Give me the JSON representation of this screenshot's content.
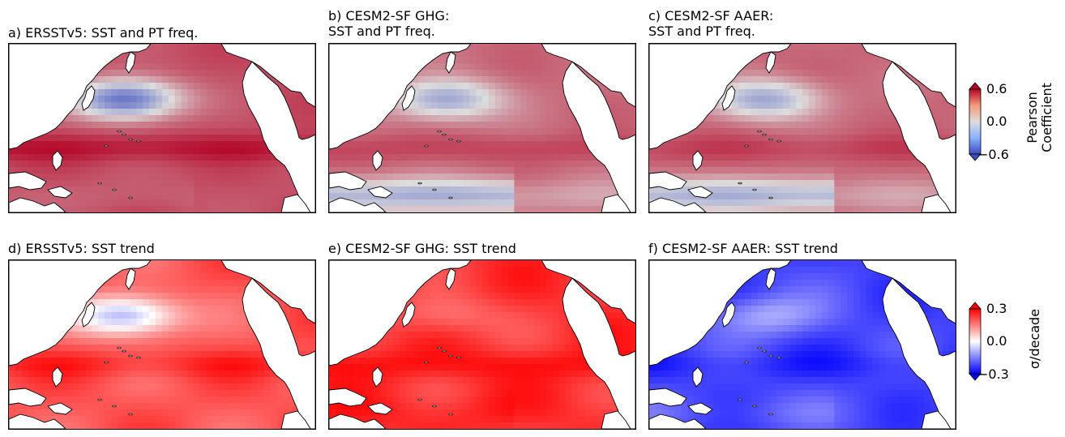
{
  "chart_data": [
    {
      "type": "heatmap",
      "panel": "a",
      "title": "a) ERSSTv5: SST and PT freq.",
      "field": "correlation",
      "colormap": "coolwarm",
      "vmin": -0.6,
      "vmax": 0.6,
      "pattern": {
        "base": 0.4,
        "ne_pacific_anomaly": -0.85,
        "tropical_band": 0.15,
        "southern_band": -0.05
      }
    },
    {
      "type": "heatmap",
      "panel": "b",
      "title": "b) CESM2-SF GHG:\nSST and PT freq.",
      "field": "correlation",
      "colormap": "coolwarm",
      "vmin": -0.6,
      "vmax": 0.6,
      "pattern": {
        "base": 0.32,
        "ne_pacific_anomaly": -0.55,
        "tropical_band": 0.1,
        "southern_band": -0.5
      }
    },
    {
      "type": "heatmap",
      "panel": "c",
      "title": "c) CESM2-SF AAER:\nSST and PT freq.",
      "field": "correlation",
      "colormap": "coolwarm",
      "vmin": -0.6,
      "vmax": 0.6,
      "pattern": {
        "base": 0.33,
        "ne_pacific_anomaly": -0.55,
        "tropical_band": 0.1,
        "southern_band": -0.5
      }
    },
    {
      "type": "heatmap",
      "panel": "d",
      "title": "d) ERSSTv5: SST trend",
      "field": "trend",
      "colormap": "bwr",
      "vmin": -0.3,
      "vmax": 0.3,
      "pattern": {
        "base": 0.2,
        "ne_pacific_anomaly": -0.3,
        "tropical_band": 0.05,
        "southern_band": 0.0
      }
    },
    {
      "type": "heatmap",
      "panel": "e",
      "title": "e) CESM2-SF GHG: SST trend",
      "field": "trend",
      "colormap": "bwr",
      "vmin": -0.3,
      "vmax": 0.3,
      "pattern": {
        "base": 0.24,
        "ne_pacific_anomaly": -0.08,
        "tropical_band": 0.04,
        "southern_band": 0.02
      }
    },
    {
      "type": "heatmap",
      "panel": "f",
      "title": "f) CESM2-SF AAER: SST trend",
      "field": "trend",
      "colormap": "bwr",
      "vmin": -0.3,
      "vmax": 0.3,
      "pattern": {
        "base": -0.22,
        "ne_pacific_anomaly": 0.12,
        "tropical_band": -0.03,
        "southern_band": 0.03
      }
    }
  ],
  "colorbars": [
    {
      "label": "Pearson\nCoefficient",
      "ticks": [
        "0.6",
        "0.0",
        "−0.6"
      ],
      "colormap": "coolwarm",
      "extend": "both"
    },
    {
      "label": "σ/decade",
      "ticks": [
        "0.3",
        "0.0",
        "−0.3"
      ],
      "colormap": "bwr",
      "extend": "both"
    }
  ],
  "colors": {
    "coolwarm_low": "#3b4cc0",
    "coolwarm_mid": "#dddddd",
    "coolwarm_high": "#b40426",
    "bwr_low": "#0000ff",
    "bwr_mid": "#ffffff",
    "bwr_high": "#ff0000",
    "land": "#ffffff",
    "coast": "#000000"
  }
}
